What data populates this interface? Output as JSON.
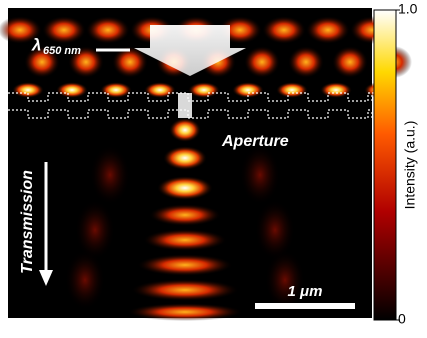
{
  "figure": {
    "wavelength_symbol": "λ",
    "wavelength_value": "650 nm",
    "aperture_label": "Aperture",
    "transmission_label": "Transmission",
    "scale_bar_label": "1 μm",
    "colorbar": {
      "label": "Intensity (a.u.)",
      "lim": [
        0,
        1
      ],
      "ticks": [
        0,
        {
          "value": 1,
          "label": "1.0"
        }
      ]
    }
  }
}
